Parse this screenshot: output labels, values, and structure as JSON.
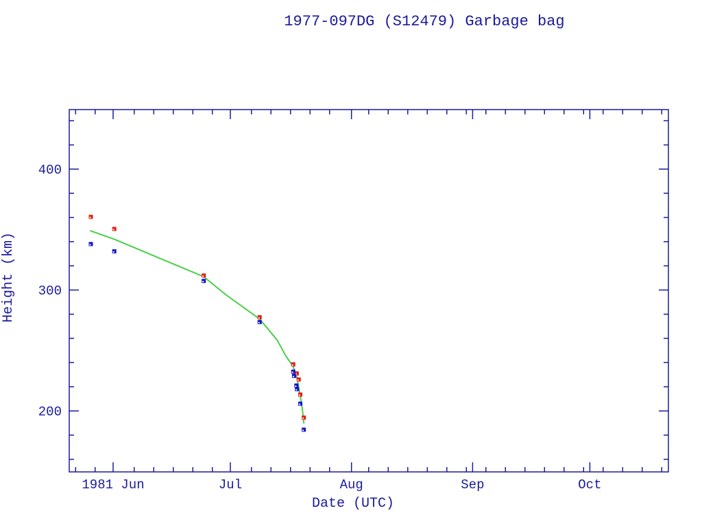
{
  "chart_data": {
    "type": "scatter",
    "title": "1977-097DG (S12479) Garbage bag",
    "xlabel": "Date (UTC)",
    "ylabel": "Height (km)",
    "grid": false,
    "legend": "none",
    "x_axis": {
      "unit": "date",
      "major_ticks": [
        {
          "day": 0,
          "label": "1981 Jun"
        },
        {
          "day": 30,
          "label": "Jul"
        },
        {
          "day": 61,
          "label": "Aug"
        },
        {
          "day": 92,
          "label": "Sep"
        },
        {
          "day": 122,
          "label": "Oct"
        }
      ],
      "minor_tick_interval_days": 5,
      "range_days_from_jun1_1981": [
        -11.2,
        142.1
      ]
    },
    "y_axis": {
      "major_ticks": [
        {
          "km": 400,
          "label": "400"
        },
        {
          "km": 300,
          "label": "300"
        },
        {
          "km": 200,
          "label": "200"
        }
      ],
      "minor_tick_interval_km": 20,
      "range_km": [
        150,
        449
      ]
    },
    "series": [
      {
        "name": "red-squares",
        "marker": "square",
        "color": "#e41e14",
        "points": [
          {
            "date": "1981-05-26",
            "day": -5.7,
            "km": 360.5
          },
          {
            "date": "1981-06-01",
            "day": 0.3,
            "km": 350.5
          },
          {
            "date": "1981-06-24",
            "day": 23.2,
            "km": 312.0
          },
          {
            "date": "1981-07-08",
            "day": 37.5,
            "km": 277.5
          },
          {
            "date": "1981-07-17",
            "day": 46.1,
            "km": 238.5
          },
          {
            "date": "1981-07-18",
            "day": 47.0,
            "km": 231.0
          },
          {
            "date": "1981-07-18",
            "day": 47.5,
            "km": 226.0
          },
          {
            "date": "1981-07-19",
            "day": 47.9,
            "km": 213.5
          },
          {
            "date": "1981-07-20",
            "day": 48.8,
            "km": 194.5
          }
        ]
      },
      {
        "name": "blue-squares",
        "marker": "square",
        "color": "#1414c8",
        "points": [
          {
            "date": "1981-05-26",
            "day": -5.7,
            "km": 338.0
          },
          {
            "date": "1981-06-01",
            "day": 0.3,
            "km": 332.0
          },
          {
            "date": "1981-06-24",
            "day": 23.2,
            "km": 307.5
          },
          {
            "date": "1981-07-08",
            "day": 37.5,
            "km": 273.5
          },
          {
            "date": "1981-07-17",
            "day": 46.1,
            "km": 232.5
          },
          {
            "date": "1981-07-17",
            "day": 46.3,
            "km": 229.0
          },
          {
            "date": "1981-07-18",
            "day": 46.9,
            "km": 221.0
          },
          {
            "date": "1981-07-18",
            "day": 47.05,
            "km": 218.0
          },
          {
            "date": "1981-07-19",
            "day": 47.9,
            "km": 206.0
          },
          {
            "date": "1981-07-20",
            "day": 48.8,
            "km": 184.5
          }
        ]
      },
      {
        "name": "green-line",
        "marker": "none",
        "line": true,
        "color": "#47cf47",
        "points": [
          {
            "day": -5.8,
            "km": 349.0
          },
          {
            "day": 0.3,
            "km": 342.0
          },
          {
            "day": 23.2,
            "km": 311.0
          },
          {
            "day": 28.9,
            "km": 296.0
          },
          {
            "day": 33.0,
            "km": 286.5
          },
          {
            "day": 37.5,
            "km": 276.0
          },
          {
            "day": 42.0,
            "km": 258.5
          },
          {
            "day": 44.2,
            "km": 245.5
          },
          {
            "day": 46.1,
            "km": 236.5
          },
          {
            "day": 47.0,
            "km": 228.0
          },
          {
            "day": 47.9,
            "km": 212.5
          },
          {
            "day": 48.4,
            "km": 202.0
          },
          {
            "day": 48.8,
            "km": 190.0
          }
        ]
      }
    ],
    "colors": {
      "axis_and_text": "#1a1a9c",
      "background": "#ffffff"
    }
  }
}
